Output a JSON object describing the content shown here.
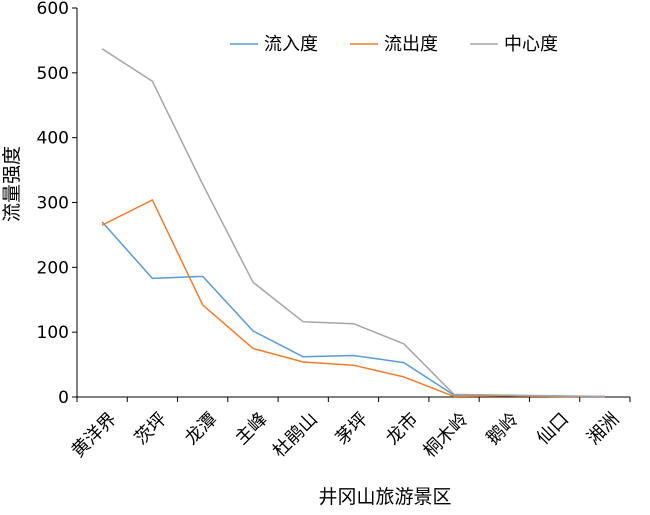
{
  "chart_data": {
    "type": "line",
    "title": "",
    "xlabel": "井冈山旅游景区",
    "ylabel": "流量强度",
    "ylim": [
      0,
      600
    ],
    "yticks": [
      0,
      100,
      200,
      300,
      400,
      500,
      600
    ],
    "categories": [
      "黄洋界",
      "茨坪",
      "龙潭",
      "主峰",
      "杜鹃山",
      "茅坪",
      "龙市",
      "桐木岭",
      "鹅岭",
      "仙口",
      "湘洲"
    ],
    "grid": false,
    "legend_position": "top-right",
    "series": [
      {
        "name": "流入度",
        "color": "#5b9bd5",
        "values": [
          270,
          183,
          186,
          102,
          62,
          64,
          53,
          3,
          2,
          1,
          1
        ]
      },
      {
        "name": "流出度",
        "color": "#ed7d31",
        "values": [
          265,
          304,
          142,
          75,
          54,
          49,
          31,
          1,
          2,
          1,
          1
        ]
      },
      {
        "name": "中心度",
        "color": "#a5a5a5",
        "values": [
          537,
          487,
          328,
          177,
          116,
          113,
          82,
          4,
          3,
          2,
          1
        ]
      }
    ]
  }
}
